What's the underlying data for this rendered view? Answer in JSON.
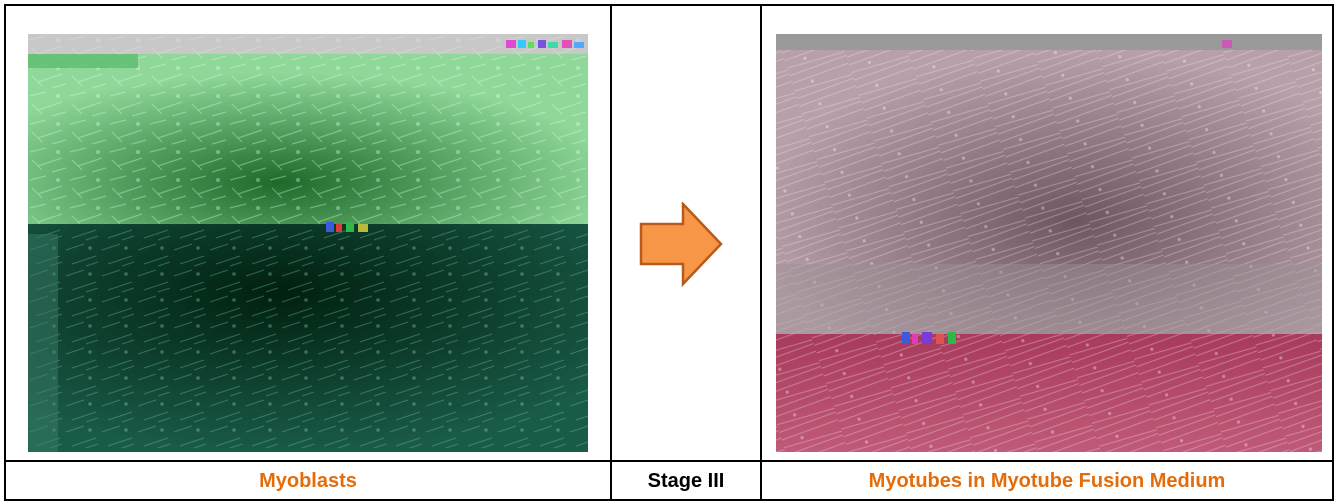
{
  "captions": {
    "left": "Myoblasts",
    "middle": "Stage III",
    "right": "Myotubes in Myotube Fusion Medium"
  },
  "colors": {
    "left_caption": "#e46c0a",
    "middle_caption": "#000000",
    "right_caption": "#e46c0a",
    "arrow_fill": "#f79646",
    "arrow_stroke": "#b85a1a",
    "left_top_tint": "#7fd08a",
    "left_bottom_tint": "#0f4a3a",
    "right_top_tint": "#b89aa6",
    "right_bottom_tint": "#b84a6c"
  },
  "images": {
    "left": "myoblasts-microscopy-image",
    "right": "myotubes-microscopy-image",
    "arrow": "right-arrow-icon"
  }
}
